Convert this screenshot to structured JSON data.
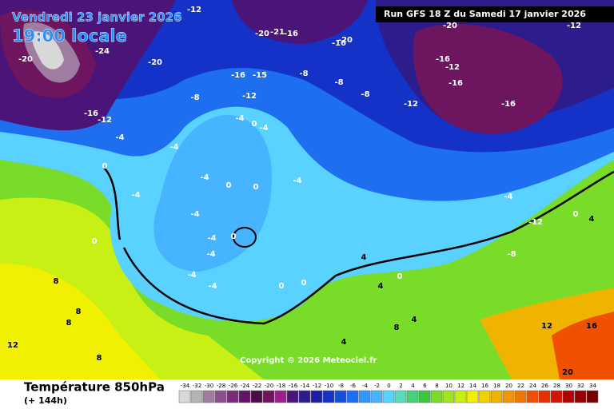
{
  "header": {
    "date": "Vendredi 23 janvier 2026",
    "time": "19:00 locale",
    "run": "Run GFS 18 Z du Samedi 17 janvier 2026"
  },
  "footer": {
    "parameter": "Température 850hPa",
    "lead": "(+ 144h)",
    "copyright": "Copyright © 2026 Meteociel.fr"
  },
  "legend": {
    "ticks": [
      -34,
      -32,
      -30,
      -28,
      -26,
      -24,
      -22,
      -20,
      -18,
      -16,
      -14,
      -12,
      -10,
      -8,
      -6,
      -4,
      -2,
      0,
      2,
      4,
      6,
      8,
      10,
      12,
      14,
      16,
      18,
      20,
      22,
      24,
      26,
      28,
      30,
      32,
      34
    ],
    "colors": [
      "#d8d8d8",
      "#b4b4b4",
      "#a07ca0",
      "#8c508c",
      "#7a2a7a",
      "#641464",
      "#4b0b4b",
      "#6e1560",
      "#9b1e8c",
      "#4b1478",
      "#2d1c8c",
      "#1e1ea0",
      "#1432c8",
      "#1450dc",
      "#1e6ef0",
      "#3296ff",
      "#46b4ff",
      "#5ad2ff",
      "#5adcb4",
      "#46d278",
      "#3cc83c",
      "#78dc28",
      "#a0e61e",
      "#c8f014",
      "#f0f000",
      "#f0d200",
      "#f0b400",
      "#f09600",
      "#f07800",
      "#f05000",
      "#e63200",
      "#d21400",
      "#b40000",
      "#960000",
      "#780000"
    ]
  },
  "contour_labels": [
    -20,
    -24,
    -12,
    -20,
    -21,
    -16,
    -20,
    -16,
    -20,
    -16,
    -15,
    -8,
    -8,
    -8,
    -12,
    -16,
    -12,
    -16,
    -16,
    -20,
    -12,
    -8,
    -12,
    -16,
    -12,
    -4,
    -4,
    -4,
    0,
    -4,
    -4,
    0,
    0,
    -4,
    -4,
    0,
    -4,
    0,
    -4,
    -4,
    -4,
    -4,
    0,
    0,
    0,
    4,
    0,
    4,
    8,
    8,
    12,
    8,
    8,
    4,
    4,
    8,
    12,
    16,
    20,
    -4,
    -12,
    -8,
    4,
    0
  ]
}
